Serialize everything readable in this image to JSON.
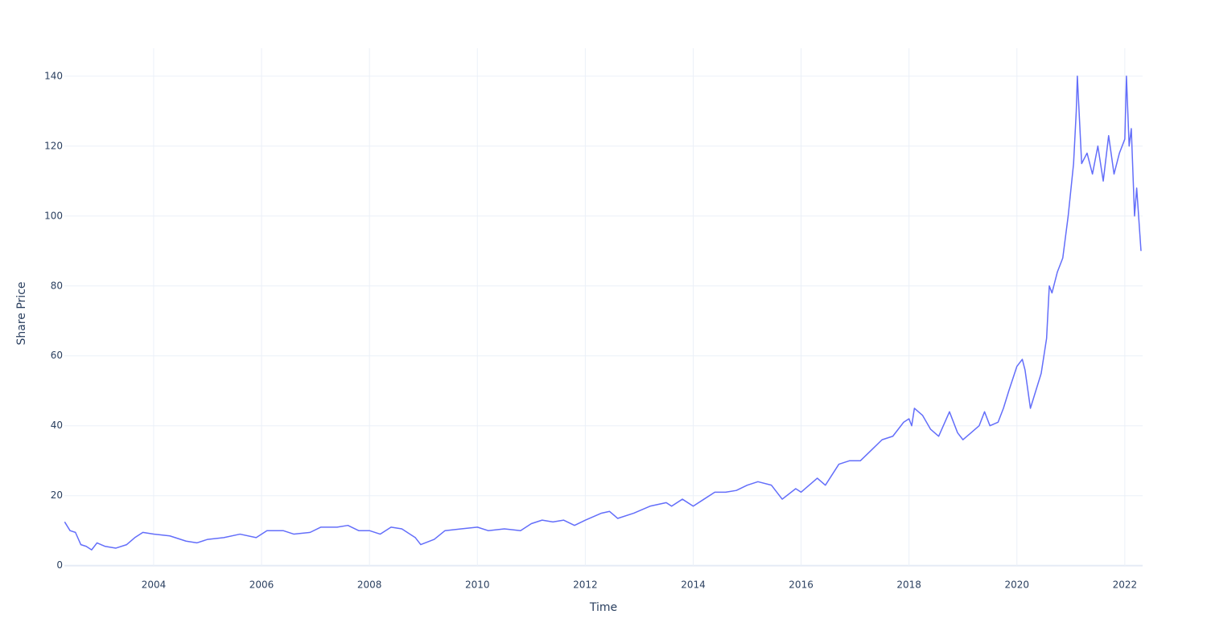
{
  "chart_data": {
    "type": "line",
    "x_label": "Time",
    "y_label": "Share Price",
    "xlim": [
      2002.345,
      2022.33
    ],
    "ylim": [
      -0.3,
      148
    ],
    "xticks": [
      2004,
      2006,
      2008,
      2010,
      2012,
      2014,
      2016,
      2018,
      2020,
      2022
    ],
    "yticks": [
      0,
      20,
      40,
      60,
      80,
      100,
      120,
      140
    ],
    "grid": true,
    "series": [
      {
        "color": "#636efa",
        "x": [
          2002.35,
          2002.45,
          2002.55,
          2002.65,
          2002.75,
          2002.85,
          2002.95,
          2003.1,
          2003.3,
          2003.5,
          2003.65,
          2003.8,
          2004.0,
          2004.3,
          2004.6,
          2004.8,
          2005.0,
          2005.3,
          2005.6,
          2005.9,
          2006.1,
          2006.4,
          2006.6,
          2006.9,
          2007.1,
          2007.4,
          2007.6,
          2007.8,
          2008.0,
          2008.2,
          2008.4,
          2008.6,
          2008.85,
          2008.95,
          2009.2,
          2009.4,
          2009.7,
          2010.0,
          2010.2,
          2010.5,
          2010.8,
          2011.0,
          2011.2,
          2011.4,
          2011.6,
          2011.8,
          2012.0,
          2012.3,
          2012.45,
          2012.6,
          2012.9,
          2013.2,
          2013.5,
          2013.6,
          2013.8,
          2014.0,
          2014.2,
          2014.4,
          2014.6,
          2014.8,
          2015.0,
          2015.2,
          2015.45,
          2015.65,
          2015.9,
          2016.0,
          2016.3,
          2016.45,
          2016.7,
          2016.9,
          2017.1,
          2017.3,
          2017.5,
          2017.7,
          2017.9,
          2018.0,
          2018.05,
          2018.1,
          2018.25,
          2018.4,
          2018.55,
          2018.75,
          2018.9,
          2019.0,
          2019.15,
          2019.3,
          2019.4,
          2019.5,
          2019.65,
          2019.75,
          2019.85,
          2020.0,
          2020.1,
          2020.15,
          2020.25,
          2020.35,
          2020.45,
          2020.55,
          2020.6,
          2020.65,
          2020.75,
          2020.85,
          2020.95,
          2021.05,
          2021.1,
          2021.12,
          2021.2,
          2021.3,
          2021.4,
          2021.5,
          2021.6,
          2021.7,
          2021.8,
          2021.9,
          2022.0,
          2022.03,
          2022.08,
          2022.12,
          2022.18,
          2022.22,
          2022.3
        ],
        "values": [
          12.5,
          10,
          9.5,
          6,
          5.5,
          4.5,
          6.5,
          5.5,
          5,
          6,
          8,
          9.5,
          9,
          8.5,
          7,
          6.5,
          7.5,
          8,
          9,
          8,
          10,
          10,
          9,
          9.5,
          11,
          11,
          11.5,
          10,
          10,
          9,
          11,
          10.5,
          8,
          6,
          7.5,
          10,
          10.5,
          11,
          10,
          10.5,
          10,
          12,
          13,
          12.5,
          13,
          11.5,
          13,
          15,
          15.5,
          13.5,
          15,
          17,
          18,
          17,
          19,
          17,
          19,
          21,
          21,
          21.5,
          23,
          24,
          23,
          19,
          22,
          21,
          25,
          23,
          29,
          30,
          30,
          33,
          36,
          37,
          41,
          42,
          40,
          45,
          43,
          39,
          37,
          44,
          38,
          36,
          38,
          40,
          44,
          40,
          41,
          45,
          50,
          57,
          59,
          56,
          45,
          50,
          55,
          65,
          80,
          78,
          84,
          88,
          100,
          115,
          130,
          140,
          115,
          118,
          112,
          120,
          110,
          123,
          112,
          118,
          122,
          140,
          120,
          125,
          100,
          108,
          90
        ]
      }
    ]
  }
}
